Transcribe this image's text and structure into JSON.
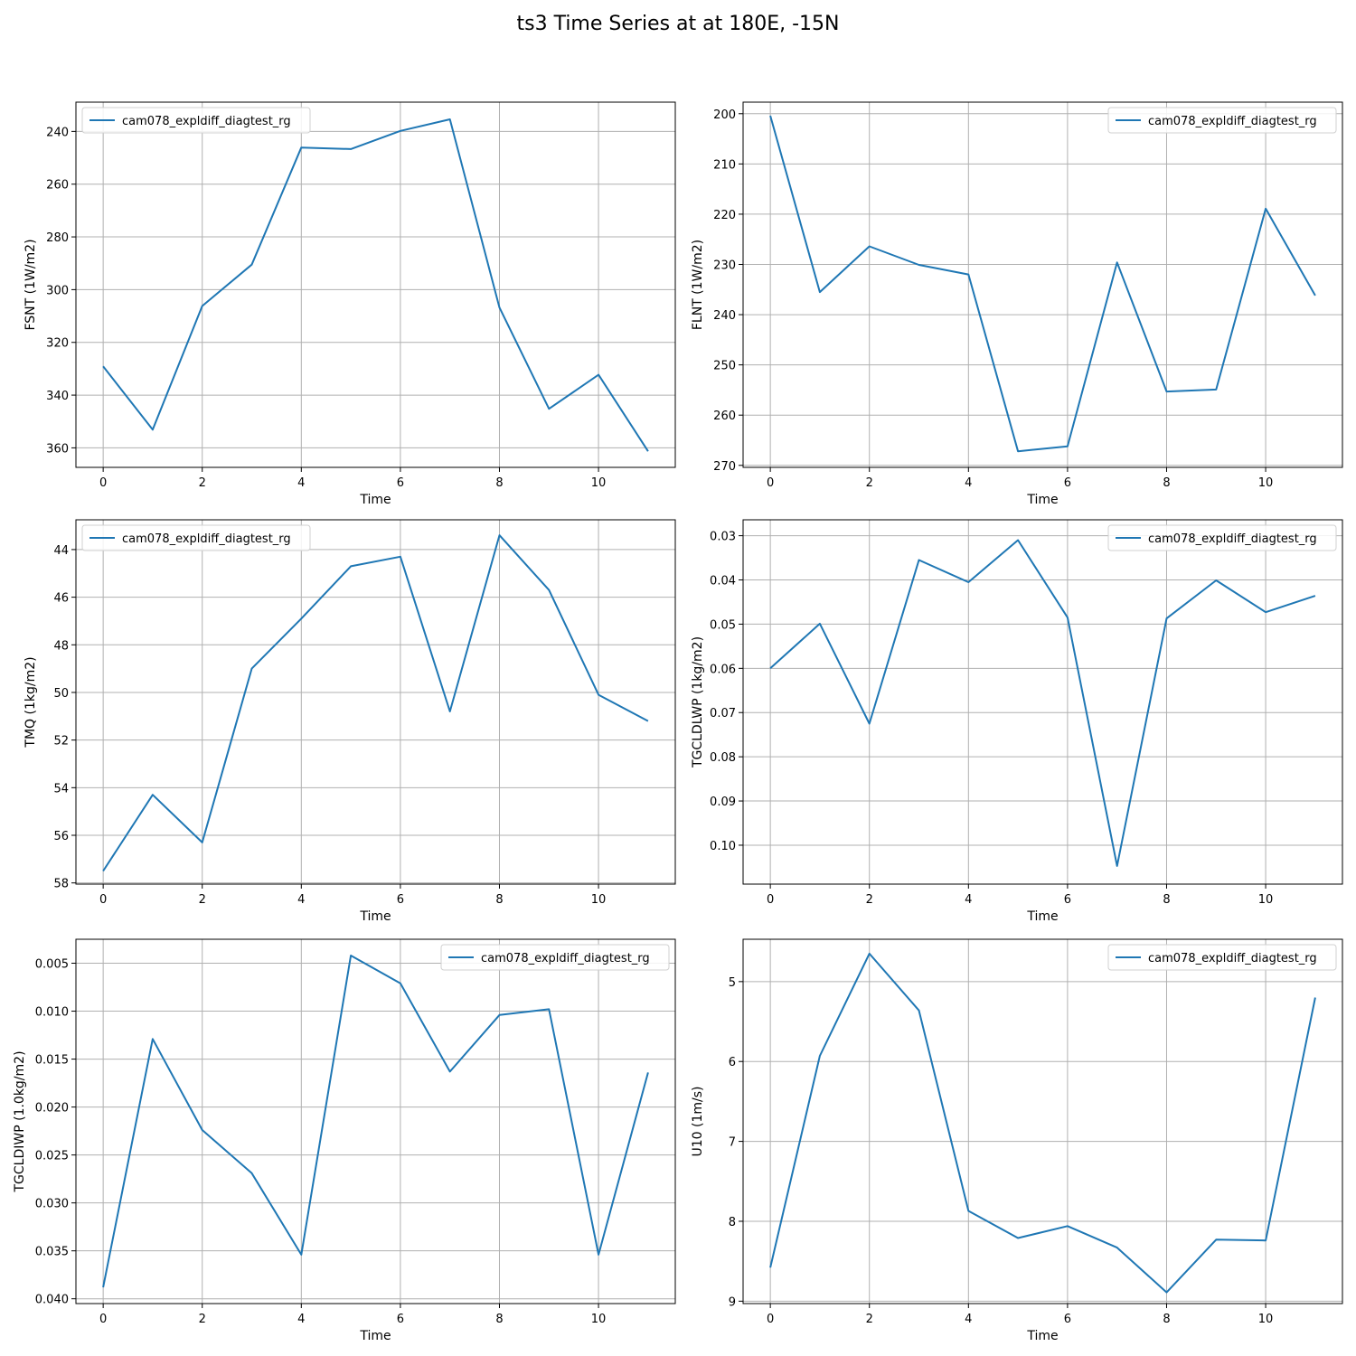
{
  "figure": {
    "title": "ts3 Time Series at at 180E, -15N"
  },
  "colors": {
    "series": "#1f77b4",
    "grid": "#b0b0b0",
    "axis": "#000000"
  },
  "chart_data": [
    {
      "type": "line",
      "xlabel": "Time",
      "ylabel": "FSNT (1W/m2)",
      "xlim": [
        -0.55,
        11.55
      ],
      "ylim": [
        367.4,
        228.9
      ],
      "y_inverted": true,
      "xticks": [
        0,
        2,
        4,
        6,
        8,
        10
      ],
      "yticks": [
        240,
        260,
        280,
        300,
        320,
        340,
        360
      ],
      "grid": true,
      "legend": "upper left",
      "series": [
        {
          "name": "cam078_expldiff_diagtest_rg",
          "x": [
            0,
            1,
            2,
            3,
            4,
            5,
            6,
            7,
            8,
            9,
            10,
            11
          ],
          "y": [
            329.1,
            353.1,
            306.2,
            290.5,
            246.1,
            246.7,
            239.8,
            235.4,
            306.8,
            345.2,
            332.3,
            361.3
          ]
        }
      ]
    },
    {
      "type": "line",
      "xlabel": "Time",
      "ylabel": "FLNT (1W/m2)",
      "xlim": [
        -0.55,
        11.55
      ],
      "ylim": [
        270.4,
        197.7
      ],
      "y_inverted": true,
      "xticks": [
        0,
        2,
        4,
        6,
        8,
        10
      ],
      "yticks": [
        200,
        210,
        220,
        230,
        240,
        250,
        260,
        270
      ],
      "grid": true,
      "legend": "upper right",
      "series": [
        {
          "name": "cam078_expldiff_diagtest_rg",
          "x": [
            0,
            1,
            2,
            3,
            4,
            5,
            6,
            7,
            8,
            9,
            10,
            11
          ],
          "y": [
            200.4,
            235.5,
            226.4,
            230.1,
            232.0,
            267.2,
            266.2,
            229.6,
            255.3,
            254.9,
            218.9,
            236.2
          ]
        }
      ]
    },
    {
      "type": "line",
      "xlabel": "Time",
      "ylabel": "TMQ (1kg/m2)",
      "xlim": [
        -0.55,
        11.55
      ],
      "ylim": [
        58.05,
        42.75
      ],
      "y_inverted": true,
      "xticks": [
        0,
        2,
        4,
        6,
        8,
        10
      ],
      "yticks": [
        44,
        46,
        48,
        50,
        52,
        54,
        56,
        58
      ],
      "grid": true,
      "legend": "upper left",
      "series": [
        {
          "name": "cam078_expldiff_diagtest_rg",
          "x": [
            0,
            1,
            2,
            3,
            4,
            5,
            6,
            7,
            8,
            9,
            10,
            11
          ],
          "y": [
            57.5,
            54.3,
            56.3,
            49.0,
            46.9,
            44.7,
            44.3,
            50.8,
            43.4,
            45.7,
            50.1,
            51.2
          ]
        }
      ]
    },
    {
      "type": "line",
      "xlabel": "Time",
      "ylabel": "TGCLDLWP (1kg/m2)",
      "xlim": [
        -0.55,
        11.55
      ],
      "ylim": [
        0.1088,
        0.0264
      ],
      "y_inverted": true,
      "xticks": [
        0,
        2,
        4,
        6,
        8,
        10
      ],
      "yticks": [
        0.03,
        0.04,
        0.05,
        0.06,
        0.07,
        0.08,
        0.09,
        0.1
      ],
      "yticklabels": [
        "0.03",
        "0.04",
        "0.05",
        "0.06",
        "0.07",
        "0.08",
        "0.09",
        "0.10"
      ],
      "grid": true,
      "legend": "upper right",
      "series": [
        {
          "name": "cam078_expldiff_diagtest_rg",
          "x": [
            0,
            1,
            2,
            3,
            4,
            5,
            6,
            7,
            8,
            9,
            10,
            11
          ],
          "y": [
            0.06,
            0.0499,
            0.0725,
            0.0355,
            0.0405,
            0.031,
            0.0485,
            0.1047,
            0.0487,
            0.0401,
            0.0473,
            0.0436
          ]
        }
      ]
    },
    {
      "type": "line",
      "xlabel": "Time",
      "ylabel": "TGCLDIWP (1.0kg/m2)",
      "xlim": [
        -0.55,
        11.55
      ],
      "ylim": [
        0.0405,
        0.0025
      ],
      "y_inverted": true,
      "xticks": [
        0,
        2,
        4,
        6,
        8,
        10
      ],
      "yticks": [
        0.005,
        0.01,
        0.015,
        0.02,
        0.025,
        0.03,
        0.035,
        0.04
      ],
      "yticklabels": [
        "0.005",
        "0.010",
        "0.015",
        "0.020",
        "0.025",
        "0.030",
        "0.035",
        "0.040"
      ],
      "grid": true,
      "legend": "upper right",
      "series": [
        {
          "name": "cam078_expldiff_diagtest_rg",
          "x": [
            0,
            1,
            2,
            3,
            4,
            5,
            6,
            7,
            8,
            9,
            10,
            11
          ],
          "y": [
            0.0388,
            0.0129,
            0.0224,
            0.0269,
            0.0354,
            0.0042,
            0.0071,
            0.0163,
            0.0104,
            0.0098,
            0.0354,
            0.0164
          ]
        }
      ]
    },
    {
      "type": "line",
      "xlabel": "Time",
      "ylabel": "U10 (1m/s)",
      "xlim": [
        -0.55,
        11.55
      ],
      "ylim": [
        9.03,
        4.47
      ],
      "y_inverted": true,
      "xticks": [
        0,
        2,
        4,
        6,
        8,
        10
      ],
      "yticks": [
        5,
        6,
        7,
        8,
        9
      ],
      "grid": true,
      "legend": "upper right",
      "series": [
        {
          "name": "cam078_expldiff_diagtest_rg",
          "x": [
            0,
            1,
            2,
            3,
            4,
            5,
            6,
            7,
            8,
            9,
            10,
            11
          ],
          "y": [
            8.58,
            5.93,
            4.65,
            5.36,
            7.87,
            8.21,
            8.06,
            8.33,
            8.89,
            8.23,
            8.24,
            5.2
          ]
        }
      ]
    }
  ]
}
